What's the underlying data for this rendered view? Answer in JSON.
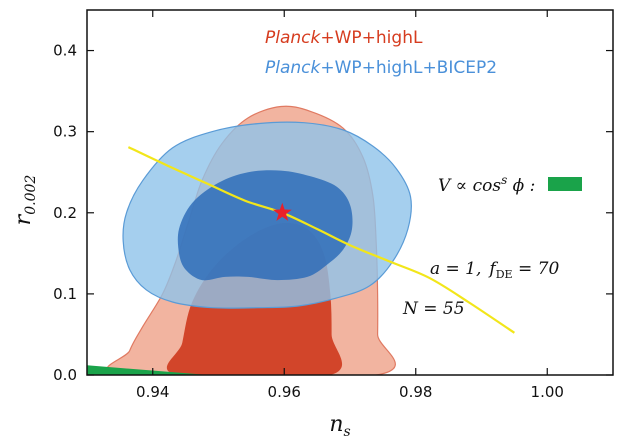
{
  "chart_data": {
    "type": "contour",
    "xlabel": "n",
    "xlabel_sub": "s",
    "ylabel": "r",
    "ylabel_sub": "0.002",
    "xlim": [
      0.93,
      1.01
    ],
    "ylim": [
      0.0,
      0.45
    ],
    "xticks": [
      0.94,
      0.96,
      0.98,
      1.0
    ],
    "xtick_labels": [
      "0.94",
      "0.96",
      "0.98",
      "1.00"
    ],
    "yticks": [
      0.0,
      0.1,
      0.2,
      0.3,
      0.4
    ],
    "ytick_labels": [
      "0.0",
      "0.1",
      "0.2",
      "0.3",
      "0.4"
    ],
    "grid": false,
    "legend": [
      {
        "italic": "Planck",
        "rest": "+WP+highL",
        "color": "#d63c1f"
      },
      {
        "italic": "Planck",
        "rest": "+WP+highL+BICEP2",
        "color": "#4a90d9"
      }
    ],
    "series": [
      {
        "name": "Planck+WP+highL",
        "color_inner": "#d2452a",
        "color_outer": "#f2b4a0",
        "contour_68": [
          [
            0.9437,
            0.0
          ],
          [
            0.9445,
            0.04
          ],
          [
            0.946,
            0.09
          ],
          [
            0.9495,
            0.135
          ],
          [
            0.9545,
            0.17
          ],
          [
            0.9595,
            0.187
          ],
          [
            0.9635,
            0.18
          ],
          [
            0.966,
            0.15
          ],
          [
            0.967,
            0.1
          ],
          [
            0.9672,
            0.05
          ],
          [
            0.967,
            0.0
          ]
        ],
        "contour_95": [
          [
            0.9357,
            0.0
          ],
          [
            0.9365,
            0.03
          ],
          [
            0.9385,
            0.06
          ],
          [
            0.9415,
            0.1
          ],
          [
            0.9435,
            0.14
          ],
          [
            0.9455,
            0.19
          ],
          [
            0.9475,
            0.24
          ],
          [
            0.9505,
            0.285
          ],
          [
            0.9545,
            0.317
          ],
          [
            0.9595,
            0.331
          ],
          [
            0.964,
            0.325
          ],
          [
            0.969,
            0.304
          ],
          [
            0.972,
            0.268
          ],
          [
            0.9735,
            0.22
          ],
          [
            0.974,
            0.16
          ],
          [
            0.9742,
            0.1
          ],
          [
            0.9742,
            0.05
          ],
          [
            0.974,
            0.0
          ]
        ]
      },
      {
        "name": "Planck+WP+highL+BICEP2",
        "color_inner": "#2f6db8",
        "color_outer": "#8ec3ea",
        "contour_68": [
          [
            0.944,
            0.15
          ],
          [
            0.945,
            0.13
          ],
          [
            0.9475,
            0.117
          ],
          [
            0.951,
            0.121
          ],
          [
            0.9545,
            0.121
          ],
          [
            0.959,
            0.117
          ],
          [
            0.9635,
            0.121
          ],
          [
            0.9665,
            0.136
          ],
          [
            0.969,
            0.155
          ],
          [
            0.9703,
            0.18
          ],
          [
            0.97,
            0.21
          ],
          [
            0.968,
            0.232
          ],
          [
            0.964,
            0.245
          ],
          [
            0.9595,
            0.252
          ],
          [
            0.9545,
            0.25
          ],
          [
            0.95,
            0.237
          ],
          [
            0.946,
            0.212
          ],
          [
            0.944,
            0.18
          ]
        ],
        "contour_95": [
          [
            0.9355,
            0.165
          ],
          [
            0.9365,
            0.13
          ],
          [
            0.939,
            0.105
          ],
          [
            0.943,
            0.09
          ],
          [
            0.949,
            0.083
          ],
          [
            0.956,
            0.083
          ],
          [
            0.962,
            0.085
          ],
          [
            0.968,
            0.095
          ],
          [
            0.973,
            0.11
          ],
          [
            0.9765,
            0.14
          ],
          [
            0.9788,
            0.18
          ],
          [
            0.9792,
            0.22
          ],
          [
            0.977,
            0.255
          ],
          [
            0.9735,
            0.282
          ],
          [
            0.969,
            0.302
          ],
          [
            0.963,
            0.311
          ],
          [
            0.956,
            0.31
          ],
          [
            0.949,
            0.3
          ],
          [
            0.943,
            0.28
          ],
          [
            0.9385,
            0.24
          ],
          [
            0.936,
            0.2
          ]
        ]
      }
    ],
    "star": {
      "x": 0.9597,
      "y": 0.2,
      "color": "#e8202a"
    },
    "prediction_line": {
      "color": "#f2e61a",
      "points": [
        [
          0.9363,
          0.281
        ],
        [
          0.942,
          0.259
        ],
        [
          0.948,
          0.237
        ],
        [
          0.954,
          0.215
        ],
        [
          0.9597,
          0.2
        ],
        [
          0.965,
          0.18
        ],
        [
          0.97,
          0.16
        ],
        [
          0.976,
          0.14
        ],
        [
          0.982,
          0.12
        ],
        [
          0.988,
          0.09
        ],
        [
          0.995,
          0.052
        ]
      ]
    },
    "green_region": {
      "color": "#1aa34a",
      "points": [
        [
          0.93,
          0.0
        ],
        [
          0.9485,
          0.0
        ],
        [
          0.93,
          0.012
        ]
      ]
    },
    "annotations": {
      "potential": "V ∝ cos",
      "potential_sup": "s",
      "potential_tail": " ϕ :",
      "params_a": "a = 1,",
      "params_f": "f",
      "params_f_sub": "DE",
      "params_f_val": " = 70",
      "efolds": "N = 55"
    }
  }
}
